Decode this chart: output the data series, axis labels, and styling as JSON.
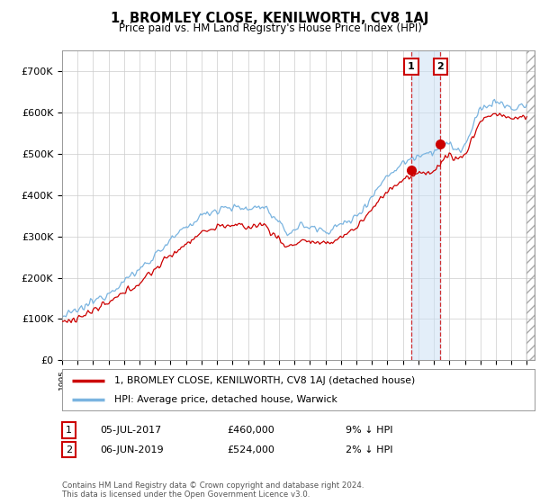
{
  "title": "1, BROMLEY CLOSE, KENILWORTH, CV8 1AJ",
  "subtitle": "Price paid vs. HM Land Registry's House Price Index (HPI)",
  "ylabel_ticks": [
    "£0",
    "£100K",
    "£200K",
    "£300K",
    "£400K",
    "£500K",
    "£600K",
    "£700K"
  ],
  "ylim": [
    0,
    750000
  ],
  "xlim_start": 1995.0,
  "xlim_end": 2025.5,
  "hpi_color": "#7ab4e0",
  "hpi_fill_color": "#c8dff5",
  "price_color": "#cc0000",
  "marker1_date": 2017.54,
  "marker1_price": 460000,
  "marker2_date": 2019.42,
  "marker2_price": 524000,
  "legend_label1": "1, BROMLEY CLOSE, KENILWORTH, CV8 1AJ (detached house)",
  "legend_label2": "HPI: Average price, detached house, Warwick",
  "footer": "Contains HM Land Registry data © Crown copyright and database right 2024.\nThis data is licensed under the Open Government Licence v3.0.",
  "background_color": "#ffffff",
  "grid_color": "#cccccc"
}
